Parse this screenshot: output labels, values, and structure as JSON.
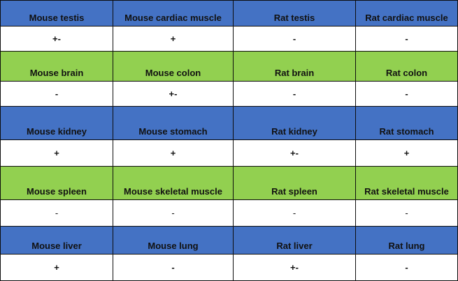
{
  "colors": {
    "blue": "#4472c4",
    "green": "#92d050",
    "white": "#ffffff",
    "border": "#0d0d0d"
  },
  "rows": [
    {
      "kind": "header",
      "color": "#4472c4",
      "height": 38,
      "cells": [
        "Mouse testis",
        "Mouse cardiac muscle",
        "Rat testis",
        "Rat cardiac muscle"
      ]
    },
    {
      "kind": "value",
      "color": "#ffffff",
      "height": 36,
      "cells": [
        "+-",
        "+",
        "-",
        "-"
      ]
    },
    {
      "kind": "header",
      "color": "#92d050",
      "height": 43,
      "cells": [
        "Mouse brain",
        "Mouse colon",
        "Rat brain",
        "Rat colon"
      ]
    },
    {
      "kind": "value",
      "color": "#ffffff",
      "height": 36,
      "cells": [
        "-",
        "+-",
        "-",
        "-"
      ]
    },
    {
      "kind": "header",
      "color": "#4472c4",
      "height": 48,
      "cells": [
        "Mouse kidney",
        "Mouse stomach",
        "Rat kidney",
        "Rat stomach"
      ]
    },
    {
      "kind": "value",
      "color": "#ffffff",
      "height": 38,
      "cells": [
        "+",
        "+",
        "+-",
        "+"
      ]
    },
    {
      "kind": "header",
      "color": "#92d050",
      "height": 48,
      "cells": [
        "Mouse spleen",
        "Mouse skeletal muscle",
        "Rat spleen",
        "Rat skeletal muscle"
      ]
    },
    {
      "kind": "value",
      "color": "#ffffff",
      "height": 38,
      "thin": true,
      "cells": [
        "-",
        "-",
        "-",
        "-"
      ]
    },
    {
      "kind": "header",
      "color": "#4472c4",
      "height": 40,
      "cells": [
        "Mouse liver",
        "Mouse lung",
        "Rat liver",
        "Rat lung"
      ]
    },
    {
      "kind": "value",
      "color": "#ffffff",
      "height": 38,
      "cells": [
        "+",
        "-",
        "+-",
        "-"
      ]
    }
  ]
}
